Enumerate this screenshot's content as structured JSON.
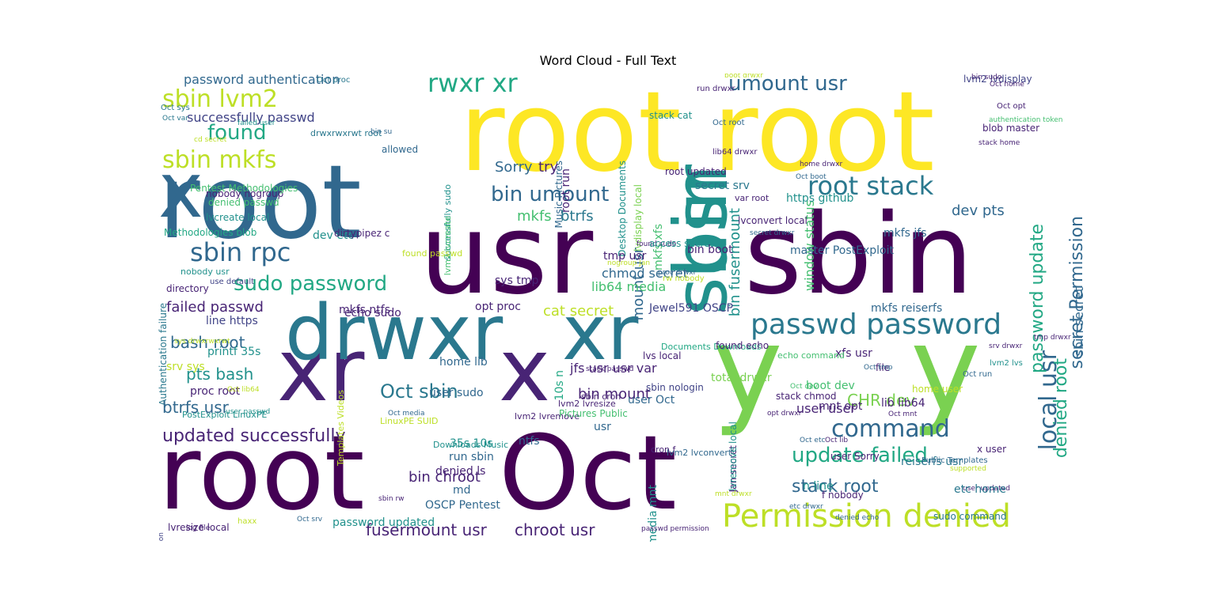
{
  "chart_data": {
    "type": "wordcloud",
    "title": "Word Cloud - Full Text",
    "palette": [
      "#440154",
      "#482475",
      "#414487",
      "#355f8d",
      "#2a788e",
      "#21918c",
      "#22a884",
      "#44bf70",
      "#7ad151",
      "#bddf26",
      "#fde725"
    ],
    "words": [
      {
        "text": "root",
        "size": 140,
        "color": "#fde725"
      },
      {
        "text": "root",
        "size": 140,
        "color": "#fde725"
      },
      {
        "text": "root",
        "size": 128,
        "color": "#31688e"
      },
      {
        "text": "usr",
        "size": 140,
        "color": "#440154"
      },
      {
        "text": "sbin",
        "size": 140,
        "color": "#440154"
      },
      {
        "text": "usr",
        "size": 92,
        "color": "#21918c",
        "vertical": true
      },
      {
        "text": "sbin",
        "size": 92,
        "color": "#21918c",
        "vertical": true
      },
      {
        "text": "xr",
        "size": 110,
        "color": "#482475"
      },
      {
        "text": "x",
        "size": 110,
        "color": "#482475"
      },
      {
        "text": "drwxr",
        "size": 96,
        "color": "#2a788e"
      },
      {
        "text": "xr",
        "size": 96,
        "color": "#2a788e"
      },
      {
        "text": "root",
        "size": 130,
        "color": "#440154"
      },
      {
        "text": "Oct",
        "size": 130,
        "color": "#440154"
      },
      {
        "text": "y",
        "size": 150,
        "color": "#7ad151"
      },
      {
        "text": "y",
        "size": 150,
        "color": "#7ad151"
      },
      {
        "text": "x",
        "size": 96,
        "color": "#31688e"
      },
      {
        "text": "passwd password",
        "size": 36,
        "color": "#2a788e"
      },
      {
        "text": "Permission denied",
        "size": 40,
        "color": "#bddf26"
      },
      {
        "text": "rwxr xr",
        "size": 32,
        "color": "#22a884"
      },
      {
        "text": "sbin lvm2",
        "size": 30,
        "color": "#bddf26"
      },
      {
        "text": "sbin mkfs",
        "size": 30,
        "color": "#bddf26"
      },
      {
        "text": "sbin rpc",
        "size": 32,
        "color": "#31688e"
      },
      {
        "text": "sudo password",
        "size": 26,
        "color": "#22a884"
      },
      {
        "text": "root stack",
        "size": 32,
        "color": "#2a788e"
      },
      {
        "text": "umount usr",
        "size": 26,
        "color": "#31688e"
      },
      {
        "text": "bin umount",
        "size": 26,
        "color": "#31688e"
      },
      {
        "text": "Oct sbin",
        "size": 24,
        "color": "#2a788e"
      },
      {
        "text": "command",
        "size": 30,
        "color": "#31688e"
      },
      {
        "text": "update failed",
        "size": 26,
        "color": "#22a884"
      },
      {
        "text": "updated successfully",
        "size": 22,
        "color": "#482475"
      },
      {
        "text": "fusermount usr",
        "size": 20,
        "color": "#482475"
      },
      {
        "text": "chroot usr",
        "size": 20,
        "color": "#482475"
      },
      {
        "text": "stack root",
        "size": 22,
        "color": "#31688e"
      },
      {
        "text": "local usr",
        "size": 30,
        "color": "#31688e",
        "vertical": true
      },
      {
        "text": "denied root",
        "size": 22,
        "color": "#22a884",
        "vertical": true
      },
      {
        "text": "secret Permission",
        "size": 22,
        "color": "#31688e",
        "vertical": true
      },
      {
        "text": "password update",
        "size": 22,
        "color": "#22a884",
        "vertical": true
      },
      {
        "text": "sbin secret",
        "size": 16,
        "color": "#31688e",
        "vertical": true
      },
      {
        "text": "bin fusermount",
        "size": 18,
        "color": "#21918c",
        "vertical": true
      },
      {
        "text": "mount usr",
        "size": 18,
        "color": "#31688e",
        "vertical": true
      },
      {
        "text": "mkfs xfs",
        "size": 14,
        "color": "#44bf70",
        "vertical": true
      },
      {
        "text": "window status",
        "size": 16,
        "color": "#44bf70",
        "vertical": true
      },
      {
        "text": "media mnt",
        "size": 14,
        "color": "#21918c",
        "vertical": true
      },
      {
        "text": "Jan secret",
        "size": 12,
        "color": "#482475",
        "vertical": true
      },
      {
        "text": "lvremove local",
        "size": 12,
        "color": "#21918c",
        "vertical": true
      },
      {
        "text": "10s n",
        "size": 14,
        "color": "#22a884",
        "vertical": true
      },
      {
        "text": "root run",
        "size": 14,
        "color": "#482475",
        "vertical": true
      },
      {
        "text": "Desktop Documents",
        "size": 12,
        "color": "#21918c",
        "vertical": true
      },
      {
        "text": "Music Pictures",
        "size": 12,
        "color": "#31688e",
        "vertical": true
      },
      {
        "text": "lvdisplay local",
        "size": 12,
        "color": "#7ad151",
        "vertical": true
      },
      {
        "text": "successfully sudo",
        "size": 11,
        "color": "#21918c",
        "vertical": true
      },
      {
        "text": "lvm2 lvcreate",
        "size": 11,
        "color": "#44bf70",
        "vertical": true
      },
      {
        "text": "Authentication failure",
        "size": 12,
        "color": "#2a788e",
        "vertical": true
      },
      {
        "text": "Templates Videos",
        "size": 11,
        "color": "#bddf26",
        "vertical": true
      },
      {
        "text": "token manipulation",
        "size": 9,
        "color": "#414487",
        "vertical": true
      },
      {
        "text": "found",
        "size": 26,
        "color": "#22a884"
      },
      {
        "text": "successfully passwd",
        "size": 16,
        "color": "#414487"
      },
      {
        "text": "password authentication",
        "size": 16,
        "color": "#31688e"
      },
      {
        "text": "Sorry",
        "size": 18,
        "color": "#31688e"
      },
      {
        "text": "try",
        "size": 18,
        "color": "#482475"
      },
      {
        "text": "mkfs",
        "size": 18,
        "color": "#44bf70"
      },
      {
        "text": "btrfs",
        "size": 18,
        "color": "#2a788e"
      },
      {
        "text": "chmod secret",
        "size": 16,
        "color": "#31688e"
      },
      {
        "text": "lib64 media",
        "size": 16,
        "color": "#44bf70"
      },
      {
        "text": "cat secret",
        "size": 18,
        "color": "#bddf26"
      },
      {
        "text": "bin mount",
        "size": 18,
        "color": "#482475"
      },
      {
        "text": "jfs usr usr var",
        "size": 16,
        "color": "#482475"
      },
      {
        "text": "bin chroot",
        "size": 18,
        "color": "#482475"
      },
      {
        "text": "CHR dev",
        "size": 20,
        "color": "#7ad151"
      },
      {
        "text": "dev pts",
        "size": 18,
        "color": "#31688e"
      },
      {
        "text": "mkfs jfs",
        "size": 14,
        "color": "#31688e"
      },
      {
        "text": "mkfs reiserfs",
        "size": 14,
        "color": "#31688e"
      },
      {
        "text": "failed passwd",
        "size": 18,
        "color": "#482475"
      },
      {
        "text": "bash root",
        "size": 20,
        "color": "#31688e"
      },
      {
        "text": "pts bash",
        "size": 20,
        "color": "#21918c"
      },
      {
        "text": "btrfs usr",
        "size": 20,
        "color": "#31688e"
      },
      {
        "text": "echo sudo",
        "size": 14,
        "color": "#482475"
      },
      {
        "text": "mkfs ntfs",
        "size": 14,
        "color": "#482475"
      },
      {
        "text": "opt proc",
        "size": 14,
        "color": "#482475"
      },
      {
        "text": "line https",
        "size": 14,
        "color": "#414487"
      },
      {
        "text": "printf 35s",
        "size": 14,
        "color": "#21918c"
      },
      {
        "text": "srv sys",
        "size": 14,
        "color": "#bddf26"
      },
      {
        "text": "proc root",
        "size": 14,
        "color": "#482475"
      },
      {
        "text": "dev etc",
        "size": 14,
        "color": "#21918c"
      },
      {
        "text": "lvcreate local",
        "size": 12,
        "color": "#21918c"
      },
      {
        "text": "nobody nogroup",
        "size": 12,
        "color": "#482475"
      },
      {
        "text": "denied passwd",
        "size": 12,
        "color": "#44bf70"
      },
      {
        "text": "Pentest Methodologies",
        "size": 12,
        "color": "#44bf70"
      },
      {
        "text": "Methodologies blob",
        "size": 12,
        "color": "#22a884"
      },
      {
        "text": "dirtypipez c",
        "size": 12,
        "color": "#482475"
      },
      {
        "text": "found passwd",
        "size": 11,
        "color": "#bddf26"
      },
      {
        "text": "nobody usr",
        "size": 11,
        "color": "#21918c"
      },
      {
        "text": "use default",
        "size": 10,
        "color": "#414487"
      },
      {
        "text": "directory",
        "size": 12,
        "color": "#482475"
      },
      {
        "text": "drwxrwxrwt root",
        "size": 11,
        "color": "#2a788e"
      },
      {
        "text": "Oct proc",
        "size": 10,
        "color": "#2a788e"
      },
      {
        "text": "Oct sys",
        "size": 10,
        "color": "#2a788e"
      },
      {
        "text": "Oct var",
        "size": 9,
        "color": "#2a788e"
      },
      {
        "text": "failed user",
        "size": 9,
        "color": "#21918c"
      },
      {
        "text": "cd secret",
        "size": 9,
        "color": "#bddf26"
      },
      {
        "text": "bin su",
        "size": 9,
        "color": "#31688e"
      },
      {
        "text": "allowed",
        "size": 12,
        "color": "#31688e"
      },
      {
        "text": "sys tmp",
        "size": 14,
        "color": "#482475"
      },
      {
        "text": "home lib",
        "size": 14,
        "color": "#31688e"
      },
      {
        "text": "user sudo",
        "size": 14,
        "color": "#31688e"
      },
      {
        "text": "35s 10s",
        "size": 14,
        "color": "#21918c"
      },
      {
        "text": "run sbin",
        "size": 14,
        "color": "#31688e"
      },
      {
        "text": "md",
        "size": 14,
        "color": "#31688e"
      },
      {
        "text": "password updated",
        "size": 14,
        "color": "#21918c"
      },
      {
        "text": "lvresize local",
        "size": 12,
        "color": "#482475"
      },
      {
        "text": "PostExploit LinuxPE",
        "size": 11,
        "color": "#21918c"
      },
      {
        "text": "LinuxPE SUID",
        "size": 11,
        "color": "#bddf26"
      },
      {
        "text": "Downloads Music",
        "size": 11,
        "color": "#21918c"
      },
      {
        "text": "OSCP Pentest",
        "size": 14,
        "color": "#31688e"
      },
      {
        "text": "denied ls",
        "size": 14,
        "color": "#482475"
      },
      {
        "text": "ntfs",
        "size": 14,
        "color": "#31688e"
      },
      {
        "text": "usr",
        "size": 14,
        "color": "#31688e"
      },
      {
        "text": "user Oct",
        "size": 14,
        "color": "#31688e"
      },
      {
        "text": "lvm2 lvremove",
        "size": 11,
        "color": "#482475"
      },
      {
        "text": "Pictures Public",
        "size": 12,
        "color": "#44bf70"
      },
      {
        "text": "stack passwd",
        "size": 9,
        "color": "#482475"
      },
      {
        "text": "lvm2 lvresize",
        "size": 11,
        "color": "#482475"
      },
      {
        "text": "sbin cron",
        "size": 11,
        "color": "#482475"
      },
      {
        "text": "cron f",
        "size": 11,
        "color": "#482475"
      },
      {
        "text": "lvm2 lvconvert",
        "size": 11,
        "color": "#31688e"
      },
      {
        "text": "sbin nologin",
        "size": 12,
        "color": "#414487"
      },
      {
        "text": "Documents Downloads",
        "size": 11,
        "color": "#22a884"
      },
      {
        "text": "lvs local",
        "size": 12,
        "color": "#482475"
      },
      {
        "text": "nogroup Jan",
        "size": 9,
        "color": "#bddf26"
      },
      {
        "text": "tmp usr",
        "size": 14,
        "color": "#482475"
      },
      {
        "text": "found sudo",
        "size": 9,
        "color": "#482475"
      },
      {
        "text": "rw nobody",
        "size": 10,
        "color": "#bddf26"
      },
      {
        "text": "proc drwxr",
        "size": 9,
        "color": "#31688e"
      },
      {
        "text": "boot drwxr",
        "size": 9,
        "color": "#bddf26"
      },
      {
        "text": "run drwxr",
        "size": 10,
        "color": "#482475"
      },
      {
        "text": "Oct root",
        "size": 10,
        "color": "#31688e"
      },
      {
        "text": "lib64 drwxr",
        "size": 10,
        "color": "#482475"
      },
      {
        "text": "bin boot",
        "size": 14,
        "color": "#482475"
      },
      {
        "text": "root updated",
        "size": 12,
        "color": "#482475"
      },
      {
        "text": "secret srv",
        "size": 14,
        "color": "#2a788e"
      },
      {
        "text": "stack cat",
        "size": 12,
        "color": "#21918c"
      },
      {
        "text": "var root",
        "size": 11,
        "color": "#482475"
      },
      {
        "text": "home drwxr",
        "size": 9,
        "color": "#482475"
      },
      {
        "text": "secret drwxr",
        "size": 9,
        "color": "#31688e"
      },
      {
        "text": "lvconvert local",
        "size": 12,
        "color": "#482475"
      },
      {
        "text": "Oct boot",
        "size": 9,
        "color": "#31688e"
      },
      {
        "text": "https github",
        "size": 14,
        "color": "#21918c"
      },
      {
        "text": "master PostExploit",
        "size": 14,
        "color": "#31688e"
      },
      {
        "text": "access secret",
        "size": 12,
        "color": "#21918c"
      },
      {
        "text": "Jewel591 OSCP",
        "size": 14,
        "color": "#414487"
      },
      {
        "text": "total drwxr",
        "size": 14,
        "color": "#7ad151"
      },
      {
        "text": "found echo",
        "size": 12,
        "color": "#482475"
      },
      {
        "text": "xfs usr",
        "size": 14,
        "color": "#482475"
      },
      {
        "text": "echo command",
        "size": 11,
        "color": "#44bf70"
      },
      {
        "text": "file",
        "size": 12,
        "color": "#482475"
      },
      {
        "text": "boot dev",
        "size": 14,
        "color": "#44bf70"
      },
      {
        "text": "Oct tmp",
        "size": 9,
        "color": "#31688e"
      },
      {
        "text": "Oct dev",
        "size": 9,
        "color": "#44bf70"
      },
      {
        "text": "lib lib64",
        "size": 14,
        "color": "#482475"
      },
      {
        "text": "Oct mnt",
        "size": 9,
        "color": "#482475"
      },
      {
        "text": "mnt opt",
        "size": 14,
        "color": "#482475"
      },
      {
        "text": "user user",
        "size": 16,
        "color": "#482475"
      },
      {
        "text": "Oct lib",
        "size": 9,
        "color": "#482475"
      },
      {
        "text": "Oct etc",
        "size": 9,
        "color": "#31688e"
      },
      {
        "text": "n line",
        "size": 14,
        "color": "#21918c"
      },
      {
        "text": "f nobody",
        "size": 12,
        "color": "#482475"
      },
      {
        "text": "supported",
        "size": 9,
        "color": "#bddf26"
      },
      {
        "text": "user updated",
        "size": 9,
        "color": "#482475"
      },
      {
        "text": "x user",
        "size": 12,
        "color": "#482475"
      },
      {
        "text": "user Sorry",
        "size": 12,
        "color": "#482475"
      },
      {
        "text": "stack chmod",
        "size": 12,
        "color": "#482475"
      },
      {
        "text": "reiserfs usr",
        "size": 14,
        "color": "#2a788e"
      },
      {
        "text": "sudo command",
        "size": 12,
        "color": "#2a788e"
      },
      {
        "text": "etc home",
        "size": 14,
        "color": "#2a788e"
      },
      {
        "text": "Public Templates",
        "size": 10,
        "color": "#31688e"
      },
      {
        "text": "home user",
        "size": 12,
        "color": "#bddf26"
      },
      {
        "text": "Oct run",
        "size": 10,
        "color": "#31688e"
      },
      {
        "text": "lvm2 lvdisplay",
        "size": 12,
        "color": "#414487"
      },
      {
        "text": "Oct home",
        "size": 9,
        "color": "#482475"
      },
      {
        "text": "Oct opt",
        "size": 10,
        "color": "#482475"
      },
      {
        "text": "authentication token",
        "size": 9,
        "color": "#44bf70"
      },
      {
        "text": "blob master",
        "size": 12,
        "color": "#482475"
      },
      {
        "text": "stack home",
        "size": 9,
        "color": "#482475"
      },
      {
        "text": "bin sudo",
        "size": 9,
        "color": "#482475"
      },
      {
        "text": "srv drwxr",
        "size": 9,
        "color": "#482475"
      },
      {
        "text": "tmp drwxr",
        "size": 9,
        "color": "#482475"
      },
      {
        "text": "lvm2 lvs",
        "size": 10,
        "color": "#21918c"
      },
      {
        "text": "mnt drwxr",
        "size": 9,
        "color": "#bddf26"
      },
      {
        "text": "opt drwxr",
        "size": 9,
        "color": "#482475"
      },
      {
        "text": "etc drwxr",
        "size": 9,
        "color": "#31688e"
      },
      {
        "text": "denied echo",
        "size": 9,
        "color": "#31688e"
      },
      {
        "text": "passwd permission",
        "size": 9,
        "color": "#482475"
      },
      {
        "text": "haxx",
        "size": 10,
        "color": "#bddf26"
      },
      {
        "text": "log file",
        "size": 9,
        "color": "#482475"
      },
      {
        "text": "sys drwxrwxrwt",
        "size": 9,
        "color": "#bddf26"
      },
      {
        "text": "Oct lib64",
        "size": 9,
        "color": "#bddf26"
      },
      {
        "text": "user passwd",
        "size": 9,
        "color": "#21918c"
      },
      {
        "text": "Oct media",
        "size": 9,
        "color": "#31688e"
      },
      {
        "text": "Oct srv",
        "size": 9,
        "color": "#31688e"
      },
      {
        "text": "sbin rw",
        "size": 9,
        "color": "#482475"
      }
    ]
  }
}
